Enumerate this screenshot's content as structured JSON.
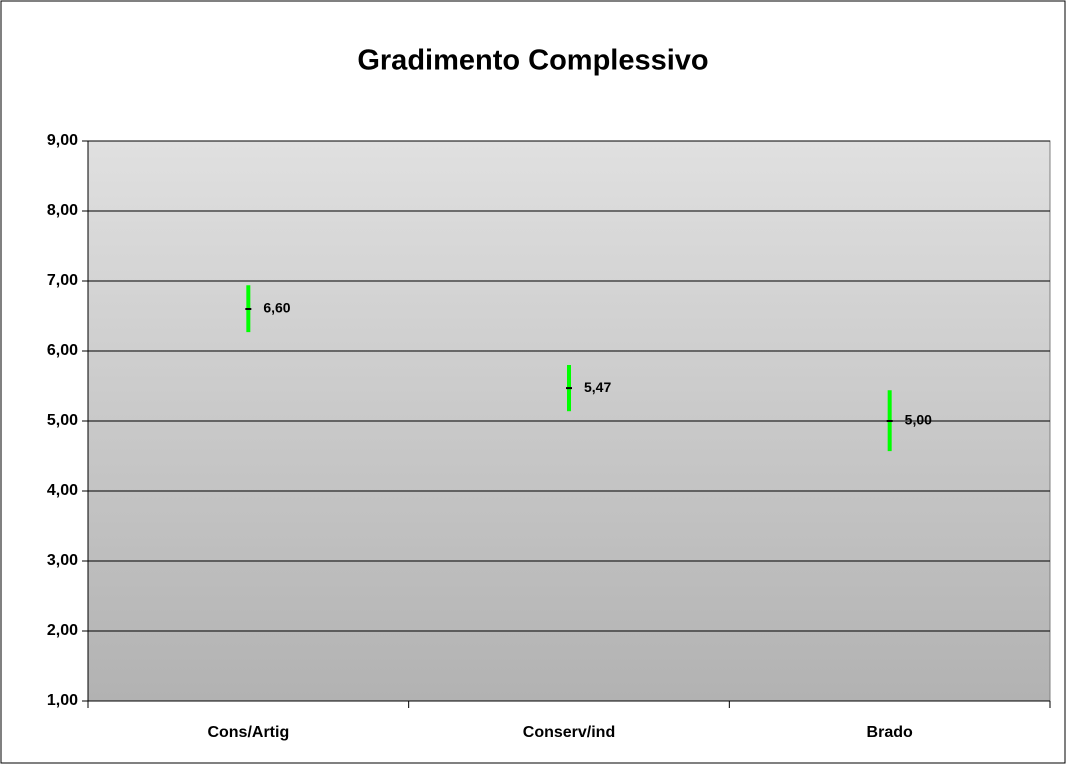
{
  "chart_data": {
    "type": "errorbar",
    "title": "Gradimento Complessivo",
    "categories": [
      "Cons/Artig",
      "Conserv/ind",
      "Brado"
    ],
    "values": [
      6.6,
      5.47,
      5.0
    ],
    "value_labels": [
      "6,60",
      "5,47",
      "5,00"
    ],
    "low": [
      6.27,
      5.14,
      4.57
    ],
    "high": [
      6.94,
      5.8,
      5.44
    ],
    "color": "#00ff00",
    "ylim": [
      1,
      9
    ],
    "yticks": [
      {
        "value": 1,
        "label": "1,00"
      },
      {
        "value": 2,
        "label": "2,00"
      },
      {
        "value": 3,
        "label": "3,00"
      },
      {
        "value": 4,
        "label": "4,00"
      },
      {
        "value": 5,
        "label": "5,00"
      },
      {
        "value": 6,
        "label": "6,00"
      },
      {
        "value": 7,
        "label": "7,00"
      },
      {
        "value": 8,
        "label": "8,00"
      },
      {
        "value": 9,
        "label": "9,00"
      }
    ],
    "grid": true
  }
}
